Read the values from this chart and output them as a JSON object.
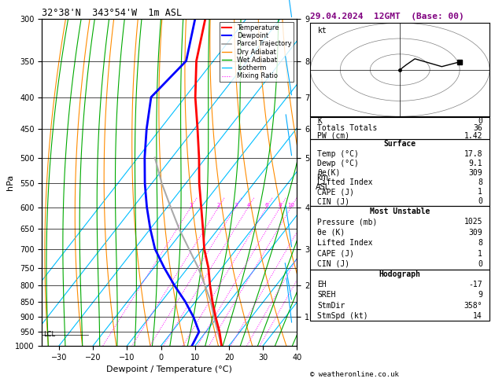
{
  "title_left": "32°38'N  343°54'W  1m ASL",
  "title_right": "29.04.2024  12GMT  (Base: 00)",
  "xlabel": "Dewpoint / Temperature (°C)",
  "ylabel_left": "hPa",
  "background": "#ffffff",
  "isotherm_color": "#00bfff",
  "dry_adiabat_color": "#ff8c00",
  "wet_adiabat_color": "#00aa00",
  "mixing_ratio_color": "#ff00ff",
  "temp_profile_color": "#ff0000",
  "dewp_profile_color": "#0000ff",
  "parcel_color": "#aaaaaa",
  "temp_profile": {
    "pressure": [
      1000,
      950,
      900,
      850,
      800,
      750,
      700,
      650,
      600,
      550,
      500,
      450,
      400,
      350,
      300
    ],
    "temp": [
      17.8,
      14.0,
      9.5,
      5.0,
      0.5,
      -4.0,
      -9.5,
      -14.5,
      -20.0,
      -26.0,
      -32.0,
      -39.0,
      -47.0,
      -55.0,
      -62.0
    ]
  },
  "dewp_profile": {
    "pressure": [
      1000,
      950,
      900,
      850,
      800,
      750,
      700,
      650,
      600,
      550,
      500,
      450,
      400,
      350,
      300
    ],
    "temp": [
      9.1,
      8.0,
      3.0,
      -3.0,
      -10.0,
      -17.0,
      -24.0,
      -30.0,
      -36.0,
      -42.0,
      -48.0,
      -54.0,
      -60.0,
      -58.0,
      -65.0
    ]
  },
  "parcel_profile": {
    "pressure": [
      1000,
      950,
      900,
      850,
      800,
      750,
      700,
      650,
      600,
      550,
      500
    ],
    "temp": [
      17.8,
      13.5,
      9.0,
      4.5,
      -1.0,
      -7.0,
      -14.0,
      -21.5,
      -29.0,
      -37.0,
      -45.0
    ]
  },
  "lcl_pressure": 960,
  "wind_barbs_pressure": [
    925,
    850,
    700,
    500,
    400,
    300
  ],
  "wind_barbs_u": [
    2,
    5,
    8,
    12,
    18,
    22
  ],
  "wind_barbs_v": [
    3,
    5,
    10,
    15,
    20,
    28
  ],
  "km_ticks_p": [
    300,
    350,
    400,
    450,
    500,
    600,
    700,
    800,
    900
  ],
  "km_ticks_v": [
    "9",
    "8",
    "7",
    "6",
    "5",
    "4",
    "3",
    "2",
    "1"
  ]
}
